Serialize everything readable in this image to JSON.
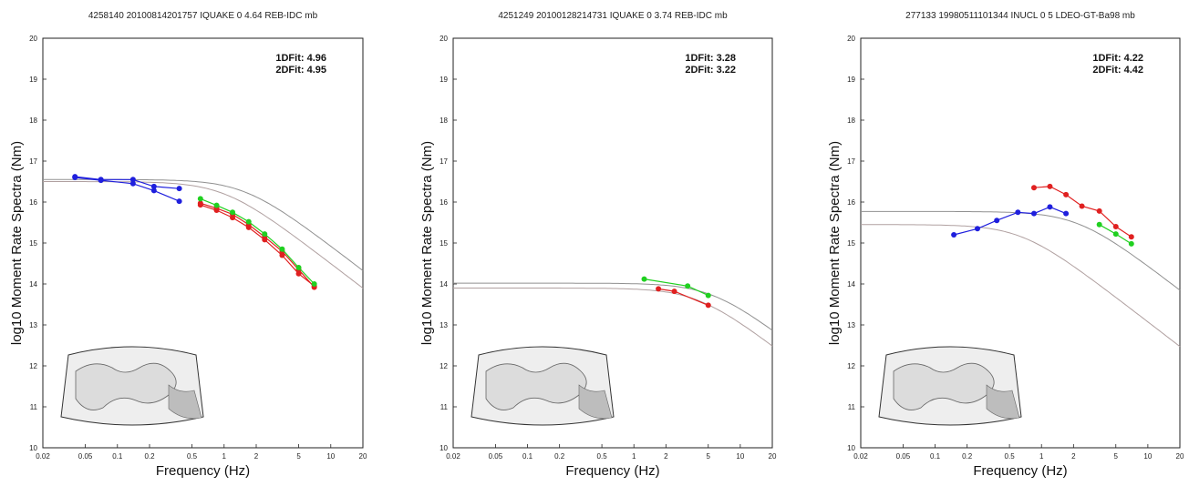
{
  "chart_data": [
    {
      "type": "scatter",
      "title": "4258140 20100814201757 IQUAKE 0 4.64 REB-IDC mb",
      "xlabel": "Frequency (Hz)",
      "ylabel": "log10 Moment Rate Spectra (Nm)",
      "xscale": "log",
      "xlim": [
        0.02,
        20
      ],
      "ylim": [
        10,
        20
      ],
      "x_ticks": [
        "0.02",
        "0.05",
        "0.1",
        "0.2",
        "0.5",
        "1",
        "2",
        "5",
        "10",
        "20"
      ],
      "y_ticks": [
        "10",
        "11",
        "12",
        "13",
        "14",
        "15",
        "16",
        "17",
        "18",
        "19",
        "20"
      ],
      "annotations": {
        "fit1d": "1DFit: 4.96",
        "fit2d": "2DFit: 4.95"
      },
      "model_curves": [
        {
          "plateau": 16.55,
          "corner": 1.55
        },
        {
          "plateau": 16.5,
          "corner": 1.0
        }
      ],
      "series": [
        {
          "color": "#1f1fdd",
          "points": [
            [
              0.04,
              16.62
            ],
            [
              0.07,
              16.55
            ],
            [
              0.14,
              16.55
            ],
            [
              0.22,
              16.38
            ],
            [
              0.38,
              16.33
            ]
          ]
        },
        {
          "color": "#1f1fdd",
          "points": [
            [
              0.04,
              16.6
            ],
            [
              0.07,
              16.53
            ],
            [
              0.14,
              16.45
            ],
            [
              0.22,
              16.28
            ],
            [
              0.38,
              16.02
            ]
          ]
        },
        {
          "color": "#e02020",
          "points": [
            [
              0.6,
              15.97
            ],
            [
              0.85,
              15.85
            ],
            [
              1.2,
              15.7
            ],
            [
              1.7,
              15.45
            ],
            [
              2.4,
              15.15
            ],
            [
              3.5,
              14.8
            ],
            [
              5.0,
              14.35
            ],
            [
              7.0,
              13.92
            ]
          ]
        },
        {
          "color": "#e02020",
          "points": [
            [
              0.6,
              15.93
            ],
            [
              0.85,
              15.8
            ],
            [
              1.2,
              15.62
            ],
            [
              1.7,
              15.38
            ],
            [
              2.4,
              15.08
            ],
            [
              3.5,
              14.7
            ],
            [
              5.0,
              14.25
            ],
            [
              7.0,
              13.95
            ]
          ]
        },
        {
          "color": "#20d020",
          "points": [
            [
              0.6,
              16.08
            ],
            [
              0.85,
              15.92
            ],
            [
              1.2,
              15.75
            ],
            [
              1.7,
              15.52
            ],
            [
              2.4,
              15.22
            ],
            [
              3.5,
              14.85
            ],
            [
              5.0,
              14.4
            ],
            [
              7.0,
              14.0
            ]
          ]
        }
      ]
    },
    {
      "type": "scatter",
      "title": "4251249 20100128214731 IQUAKE 0 3.74 REB-IDC mb",
      "xlabel": "Frequency (Hz)",
      "ylabel": "log10 Moment Rate Spectra (Nm)",
      "xscale": "log",
      "xlim": [
        0.02,
        20
      ],
      "ylim": [
        10,
        20
      ],
      "x_ticks": [
        "0.02",
        "0.05",
        "0.1",
        "0.2",
        "0.5",
        "1",
        "2",
        "5",
        "10",
        "20"
      ],
      "y_ticks": [
        "10",
        "11",
        "12",
        "13",
        "14",
        "15",
        "16",
        "17",
        "18",
        "19",
        "20"
      ],
      "annotations": {
        "fit1d": "1DFit: 3.28",
        "fit2d": "2DFit: 3.22"
      },
      "model_curves": [
        {
          "plateau": 14.02,
          "corner": 5.5
        },
        {
          "plateau": 13.9,
          "corner": 4.0
        }
      ],
      "series": [
        {
          "color": "#20d020",
          "points": [
            [
              1.25,
              14.12
            ],
            [
              3.2,
              13.95
            ],
            [
              5.0,
              13.72
            ]
          ]
        },
        {
          "color": "#e02020",
          "points": [
            [
              1.7,
              13.88
            ],
            [
              2.4,
              13.82
            ],
            [
              5.0,
              13.48
            ]
          ]
        }
      ]
    },
    {
      "type": "scatter",
      "title": "277133 19980511101344 INUCL 0 5 LDEO-GT-Ba98 mb",
      "xlabel": "Frequency (Hz)",
      "ylabel": "log10 Moment Rate Spectra (Nm)",
      "xscale": "log",
      "xlim": [
        0.02,
        20
      ],
      "ylim": [
        10,
        20
      ],
      "x_ticks": [
        "0.02",
        "0.05",
        "0.1",
        "0.2",
        "0.5",
        "1",
        "2",
        "5",
        "10",
        "20"
      ],
      "y_ticks": [
        "10",
        "11",
        "12",
        "13",
        "14",
        "15",
        "16",
        "17",
        "18",
        "19",
        "20"
      ],
      "annotations": {
        "fit1d": "1DFit: 4.22",
        "fit2d": "2DFit: 4.42"
      },
      "model_curves": [
        {
          "plateau": 15.77,
          "corner": 2.2
        },
        {
          "plateau": 15.45,
          "corner": 0.65
        }
      ],
      "series": [
        {
          "color": "#1f1fdd",
          "points": [
            [
              0.15,
              15.2
            ],
            [
              0.25,
              15.35
            ],
            [
              0.38,
              15.55
            ],
            [
              0.6,
              15.75
            ],
            [
              0.85,
              15.72
            ],
            [
              1.2,
              15.88
            ],
            [
              1.7,
              15.72
            ]
          ]
        },
        {
          "color": "#e02020",
          "points": [
            [
              0.85,
              16.35
            ],
            [
              1.2,
              16.38
            ],
            [
              1.7,
              16.18
            ],
            [
              2.4,
              15.9
            ],
            [
              3.5,
              15.78
            ],
            [
              5.0,
              15.4
            ],
            [
              7.0,
              15.15
            ]
          ]
        },
        {
          "color": "#20d020",
          "points": [
            [
              3.5,
              15.45
            ],
            [
              5.0,
              15.22
            ],
            [
              7.0,
              14.98
            ]
          ]
        }
      ]
    }
  ]
}
